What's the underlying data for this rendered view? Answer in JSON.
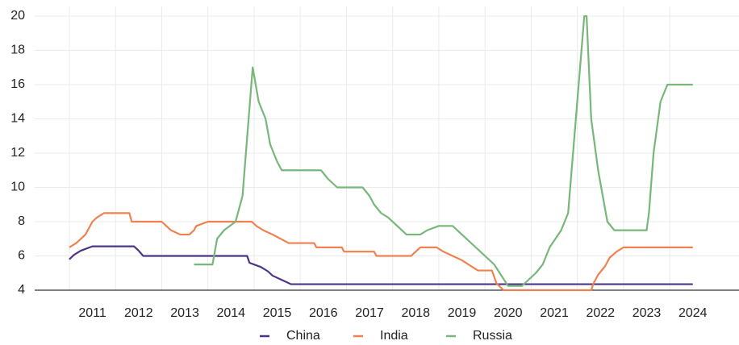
{
  "chart_data": {
    "type": "line",
    "xlim": [
      2010.25,
      2025.5
    ],
    "ylim": [
      4,
      20
    ],
    "xticks": [
      2011,
      2012,
      2013,
      2014,
      2015,
      2016,
      2017,
      2018,
      2019,
      2020,
      2021,
      2022,
      2023,
      2024
    ],
    "yticks": [
      4,
      6,
      8,
      10,
      12,
      14,
      16,
      18,
      20
    ],
    "grid": true,
    "legend": "bottom",
    "series": [
      {
        "name": "China",
        "color": "#4b3587",
        "x": [
          2011.0,
          2011.1,
          2011.25,
          2011.5,
          2012.4,
          2012.5,
          2012.6,
          2014.85,
          2014.9,
          2015.15,
          2015.3,
          2015.4,
          2015.6,
          2015.8,
          2024.5
        ],
        "values": [
          5.8,
          6.06,
          6.31,
          6.56,
          6.56,
          6.31,
          6.0,
          6.0,
          5.6,
          5.35,
          5.1,
          4.85,
          4.6,
          4.35,
          4.35
        ]
      },
      {
        "name": "India",
        "color": "#f08050",
        "x": [
          2011.0,
          2011.15,
          2011.35,
          2011.5,
          2011.6,
          2011.75,
          2012.3,
          2012.35,
          2013.0,
          2013.1,
          2013.2,
          2013.4,
          2013.6,
          2013.7,
          2013.75,
          2014.0,
          2014.95,
          2015.05,
          2015.2,
          2015.4,
          2015.75,
          2016.3,
          2016.35,
          2016.9,
          2016.95,
          2017.6,
          2017.65,
          2018.4,
          2018.5,
          2018.6,
          2018.95,
          2019.1,
          2019.3,
          2019.5,
          2019.7,
          2019.85,
          2020.15,
          2020.25,
          2020.4,
          2022.3,
          2022.35,
          2022.45,
          2022.6,
          2022.7,
          2022.85,
          2023.0,
          2024.5
        ],
        "values": [
          6.5,
          6.75,
          7.25,
          8.0,
          8.25,
          8.5,
          8.5,
          8.0,
          8.0,
          7.75,
          7.5,
          7.25,
          7.25,
          7.5,
          7.75,
          8.0,
          8.0,
          7.75,
          7.5,
          7.25,
          6.75,
          6.75,
          6.5,
          6.5,
          6.25,
          6.25,
          6.0,
          6.0,
          6.25,
          6.5,
          6.5,
          6.25,
          6.0,
          5.75,
          5.4,
          5.15,
          5.15,
          4.4,
          4.0,
          4.0,
          4.4,
          4.9,
          5.4,
          5.9,
          6.25,
          6.5,
          6.5
        ]
      },
      {
        "name": "Russia",
        "color": "#77b77a",
        "x": [
          2013.7,
          2014.1,
          2014.2,
          2014.35,
          2014.6,
          2014.75,
          2014.97,
          2015.1,
          2015.25,
          2015.35,
          2015.5,
          2015.6,
          2016.45,
          2016.6,
          2016.8,
          2017.35,
          2017.5,
          2017.6,
          2017.75,
          2017.9,
          2018.1,
          2018.3,
          2018.6,
          2018.75,
          2019.0,
          2019.3,
          2019.5,
          2019.8,
          2019.9,
          2020.0,
          2020.2,
          2020.5,
          2020.8,
          2020.9,
          2021.1,
          2021.25,
          2021.4,
          2021.65,
          2021.8,
          2022.15,
          2022.2,
          2022.3,
          2022.45,
          2022.55,
          2022.65,
          2022.8,
          2023.5,
          2023.55,
          2023.65,
          2023.7,
          2023.8,
          2023.95,
          2024.5
        ],
        "values": [
          5.5,
          5.5,
          7.0,
          7.5,
          8.0,
          9.5,
          17,
          15,
          14,
          12.5,
          11.5,
          11,
          11,
          10.5,
          10,
          10,
          9.5,
          9,
          8.5,
          8.25,
          7.75,
          7.25,
          7.25,
          7.5,
          7.75,
          7.75,
          7.25,
          6.5,
          6.25,
          6.0,
          5.5,
          4.25,
          4.25,
          4.5,
          5.0,
          5.5,
          6.5,
          7.5,
          8.5,
          20,
          20,
          14,
          11,
          9.5,
          8,
          7.5,
          7.5,
          8.5,
          12,
          13,
          15,
          16,
          16
        ]
      }
    ]
  }
}
